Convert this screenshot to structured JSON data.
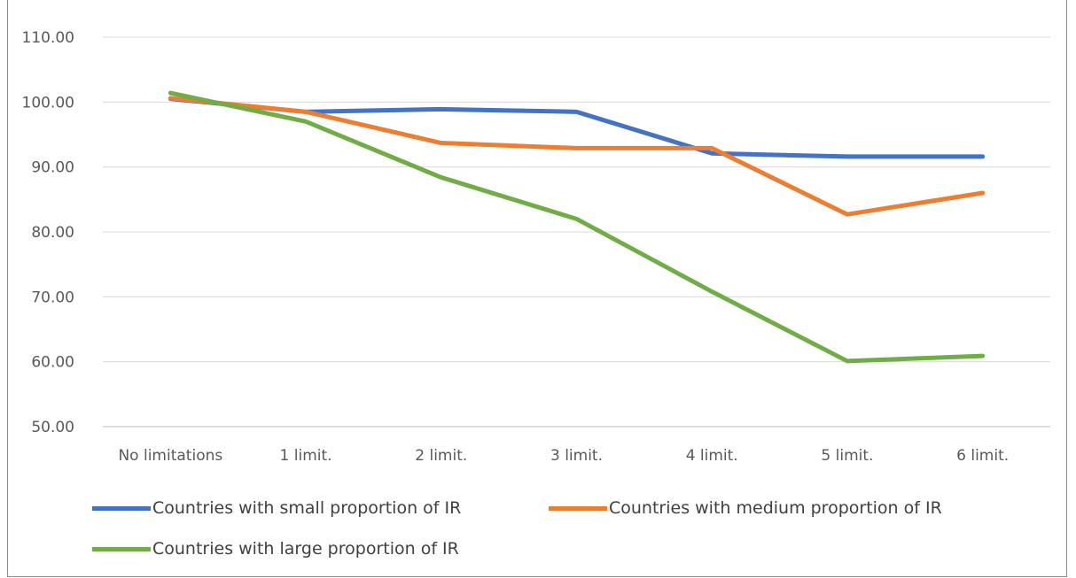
{
  "chart_data": {
    "type": "line",
    "title": "",
    "xlabel": "",
    "ylabel": "",
    "categories": [
      "No limitations",
      "1 limit.",
      "2 limit.",
      "3 limit.",
      "4 limit.",
      "5 limit.",
      "6 limit."
    ],
    "ylim": [
      50,
      110
    ],
    "yticks": [
      "50.00",
      "60.00",
      "70.00",
      "80.00",
      "90.00",
      "100.00",
      "110.00"
    ],
    "grid": true,
    "legend_position": "bottom",
    "series": [
      {
        "name": "Countries with small proportion of IR",
        "color": "#4472c4",
        "values": [
          100.5,
          98.5,
          98.9,
          98.5,
          92.1,
          91.6,
          91.6
        ]
      },
      {
        "name": "Countries with medium proportion of IR",
        "color": "#ed7d31",
        "values": [
          100.6,
          98.5,
          93.7,
          92.9,
          92.9,
          82.7,
          86.0
        ]
      },
      {
        "name": "Countries with large proportion of IR",
        "color": "#70ad47",
        "values": [
          101.4,
          97.0,
          88.4,
          82.0,
          70.8,
          60.1,
          60.9
        ]
      }
    ]
  }
}
